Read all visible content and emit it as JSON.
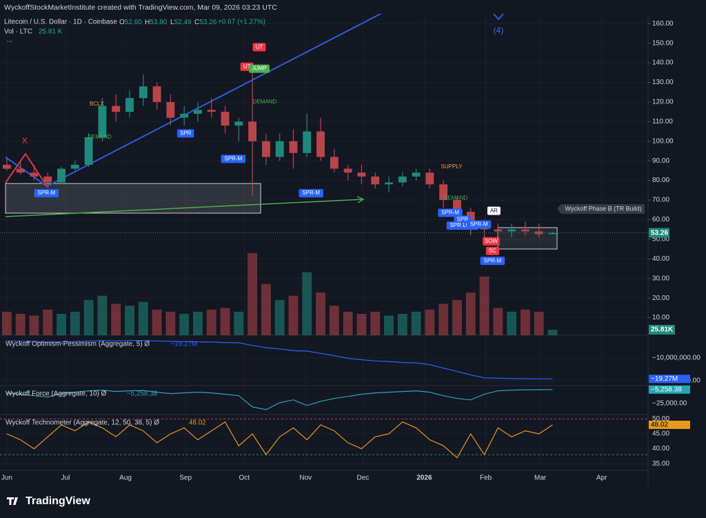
{
  "page": {
    "credit": "WyckoffStockMarketInstitute created with TradingView.com, Mar 09, 2026 03:23 UTC",
    "logo": "TradingView"
  },
  "legend": {
    "symbol": "Litecoin / U.S. Dollar · 1D · Coinbase",
    "o_label": "O",
    "o": "52.60",
    "h_label": "H",
    "h": "53.80",
    "l_label": "L",
    "l": "52.49",
    "c_label": "C",
    "c": "53.26",
    "change": "+0.67 (+1.27%)",
    "vol": "Vol · LTC",
    "vol_value": "25.81 K",
    "more": "..."
  },
  "chart_data": {
    "type": "candlestick",
    "up_color": "#1f8a7c",
    "down_color": "#b8454b",
    "xlim": [
      -0.5,
      47
    ],
    "xticks": [
      {
        "value": 0,
        "label": "Jun"
      },
      {
        "value": 4.3,
        "label": "Jul"
      },
      {
        "value": 8.7,
        "label": "Aug"
      },
      {
        "value": 13.1,
        "label": "Sep"
      },
      {
        "value": 17.4,
        "label": "Oct"
      },
      {
        "value": 21.9,
        "label": "Nov"
      },
      {
        "value": 26.1,
        "label": "Dec"
      },
      {
        "value": 30.6,
        "label": "2026"
      },
      {
        "value": 35.1,
        "label": "Feb"
      },
      {
        "value": 39.1,
        "label": "Mar"
      },
      {
        "value": 43.6,
        "label": "Apr"
      }
    ],
    "ylim": [
      0,
      165
    ],
    "yticks": [
      {
        "value": 160,
        "label": "160.00"
      },
      {
        "value": 150,
        "label": "150.00"
      },
      {
        "value": 140,
        "label": "140.00"
      },
      {
        "value": 130,
        "label": "130.00"
      },
      {
        "value": 120,
        "label": "120.00"
      },
      {
        "value": 110,
        "label": "110.00"
      },
      {
        "value": 100,
        "label": "100.00"
      },
      {
        "value": 90,
        "label": "90.00"
      },
      {
        "value": 80,
        "label": "80.00"
      },
      {
        "value": 70,
        "label": "70.00"
      },
      {
        "value": 60,
        "label": "60.00"
      },
      {
        "value": 50,
        "label": "50.00"
      },
      {
        "value": 40,
        "label": "40.00"
      },
      {
        "value": 30,
        "label": "30.00"
      },
      {
        "value": 20,
        "label": "20.00"
      },
      {
        "value": 10,
        "label": "10.00"
      }
    ],
    "open": [
      88,
      86,
      84,
      82,
      79,
      86,
      88,
      102,
      118,
      115,
      122,
      128,
      120,
      112,
      114,
      116,
      115,
      108,
      110,
      100,
      92,
      100,
      94,
      105,
      92,
      86,
      84,
      82,
      78,
      79,
      82,
      84,
      78,
      70,
      64,
      56,
      55,
      54,
      55,
      54,
      52.6
    ],
    "high": [
      92,
      90,
      88,
      84,
      87,
      90,
      104,
      122,
      124,
      126,
      134,
      130,
      124,
      118,
      120,
      122,
      118,
      112,
      136,
      104,
      104,
      106,
      114,
      112,
      96,
      88,
      88,
      84,
      82,
      84,
      86,
      86,
      80,
      72,
      66,
      60,
      58,
      58,
      59,
      58,
      53.8
    ],
    "low": [
      85,
      83,
      80,
      76,
      78,
      85,
      87,
      100,
      110,
      112,
      118,
      116,
      108,
      108,
      110,
      112,
      104,
      100,
      72,
      88,
      90,
      86,
      92,
      90,
      84,
      80,
      78,
      76,
      74,
      77,
      80,
      76,
      66,
      60,
      52,
      48,
      52,
      51,
      52,
      51,
      52.49
    ],
    "close": [
      86,
      84,
      82,
      79,
      86,
      88,
      102,
      118,
      115,
      122,
      128,
      120,
      112,
      114,
      116,
      115,
      108,
      110,
      100,
      92,
      100,
      94,
      105,
      92,
      86,
      84,
      82,
      78,
      79,
      82,
      84,
      78,
      70,
      64,
      56,
      55,
      54,
      55,
      54,
      52.6,
      53.26
    ],
    "last_price_label": "53.26",
    "volume": [
      110,
      100,
      92,
      120,
      100,
      110,
      165,
      185,
      147,
      138,
      156,
      120,
      110,
      100,
      110,
      120,
      128,
      110,
      385,
      240,
      165,
      185,
      295,
      200,
      138,
      110,
      100,
      110,
      92,
      100,
      110,
      120,
      147,
      165,
      200,
      275,
      128,
      110,
      120,
      110,
      25.81
    ],
    "vlim": [
      0,
      420
    ],
    "last_volume_label": "25.81K",
    "annotations": [
      {
        "text": "X",
        "x": 1.3,
        "y": 100,
        "style": "text",
        "color": "#f23645"
      },
      {
        "text": "UT",
        "x": 18.5,
        "y": 148,
        "style": "box",
        "color": "#f23645"
      },
      {
        "text": "UT",
        "x": 17.6,
        "y": 138,
        "style": "box",
        "color": "#f23645"
      },
      {
        "text": "JUMP",
        "x": 18.5,
        "y": 137,
        "style": "box",
        "color": "#4caf50"
      },
      {
        "text": "BCLX",
        "x": 6.6,
        "y": 119,
        "style": "text",
        "color": "#e8a33d"
      },
      {
        "text": "DEMAND",
        "x": 6.8,
        "y": 102,
        "style": "text",
        "color": "#4caf50"
      },
      {
        "text": "DEMAND",
        "x": 18.9,
        "y": 120,
        "style": "text",
        "color": "#4caf50"
      },
      {
        "text": "SPR",
        "x": 13.1,
        "y": 104,
        "style": "box",
        "color": "#2962ff"
      },
      {
        "text": "SPR-M",
        "x": 16.6,
        "y": 91,
        "style": "box",
        "color": "#2962ff"
      },
      {
        "text": "SPR-M",
        "x": 2.9,
        "y": 73.5,
        "style": "box",
        "color": "#2962ff"
      },
      {
        "text": "SPR-M",
        "x": 22.3,
        "y": 73.5,
        "style": "box",
        "color": "#2962ff"
      },
      {
        "text": "SUPPLY",
        "x": 32.6,
        "y": 87,
        "style": "text",
        "color": "#e8a33d"
      },
      {
        "text": "DEMAND",
        "x": 32.9,
        "y": 71,
        "style": "text",
        "color": "#4caf50"
      },
      {
        "text": "SPR-M",
        "x": 32.5,
        "y": 63.5,
        "style": "box",
        "color": "#2962ff"
      },
      {
        "text": "SPR",
        "x": 33.4,
        "y": 60,
        "style": "box",
        "color": "#2962ff"
      },
      {
        "text": "SPR LOW",
        "x": 33.4,
        "y": 57,
        "style": "box",
        "color": "#2962ff"
      },
      {
        "text": "SPR-M",
        "x": 34.6,
        "y": 57.5,
        "style": "box",
        "color": "#2962ff"
      },
      {
        "text": "AR",
        "x": 35.7,
        "y": 64.5,
        "style": "box",
        "color": "#ffffff"
      },
      {
        "text": "SOW",
        "x": 35.5,
        "y": 49,
        "style": "box",
        "color": "#f23645"
      },
      {
        "text": "SC",
        "x": 35.6,
        "y": 44,
        "style": "box",
        "color": "#f23645"
      },
      {
        "text": "SPR-M",
        "x": 35.6,
        "y": 39,
        "style": "box",
        "color": "#2962ff"
      }
    ],
    "wave_label": "(4)",
    "callout": "Wyckoff Phase B (TR Build)",
    "panes": [
      {
        "type": "line",
        "title": "Wyckoff Optimism-Pessimism (Aggregate, 5)  Ø",
        "value_label": "−19.27M",
        "color": "#2962ff",
        "ylim": [
          -21300000,
          -900000
        ],
        "yticks": [
          {
            "value": -10000000,
            "label": "−10,000,000.00"
          },
          {
            "value": -20000000,
            "label": "−20,000,000.00"
          }
        ],
        "values": [
          -2500000,
          -2600000,
          -2800000,
          -3000000,
          -2900000,
          -2800000,
          -2600000,
          -2400000,
          -2500000,
          -2400000,
          -2300000,
          -2500000,
          -2700000,
          -2800000,
          -2900000,
          -3000000,
          -3200000,
          -3300000,
          -4500000,
          -5500000,
          -6000000,
          -6800000,
          -7000000,
          -8000000,
          -9000000,
          -10200000,
          -10800000,
          -11300000,
          -11600000,
          -12000000,
          -12200000,
          -13000000,
          -14500000,
          -16000000,
          -17500000,
          -18800000,
          -19000000,
          -19100000,
          -19200000,
          -19250000,
          -19270000
        ],
        "last_label": "−19.27M"
      },
      {
        "type": "line",
        "title": "Wyckoff Force (Aggregate, 10)  Ø",
        "value_label": "−5,258.38",
        "color": "#26a6b5",
        "ylim": [
          -39000,
          -1500
        ],
        "yticks": [
          {
            "value": -25000,
            "label": "−25,000.00"
          }
        ],
        "values": [
          -10000,
          -12000,
          -14000,
          -16000,
          -11000,
          -9000,
          -7000,
          -6000,
          -8000,
          -7000,
          -6500,
          -9000,
          -11000,
          -10000,
          -9000,
          -10000,
          -12000,
          -14000,
          -30000,
          -34000,
          -24000,
          -20000,
          -28000,
          -22000,
          -18000,
          -15000,
          -12000,
          -10000,
          -9000,
          -8000,
          -7000,
          -9000,
          -14000,
          -18000,
          -20000,
          -12000,
          -7000,
          -6000,
          -5500,
          -5400,
          -5258.38
        ],
        "last_label": "−5,258.38"
      },
      {
        "type": "line",
        "title": "Wyckoff Technometer (Aggregate, 12, 50, 38, 5)  Ø",
        "value_label": "48.02",
        "color": "#e69a1e",
        "ylim": [
          33.2,
          51
        ],
        "yticks": [
          {
            "value": 50,
            "label": "50.00"
          },
          {
            "value": 45,
            "label": "45.00"
          },
          {
            "value": 40,
            "label": "40.00"
          },
          {
            "value": 35,
            "label": "35.00"
          }
        ],
        "levels": [
          {
            "value": 50,
            "color": "#b8454b"
          },
          {
            "value": 38,
            "color": "#1f8a7c"
          }
        ],
        "values": [
          45,
          43,
          40,
          44,
          48,
          46,
          49,
          47,
          44,
          48,
          46,
          42,
          45,
          47,
          43,
          46,
          49,
          41,
          45,
          38,
          44,
          47,
          43,
          48,
          46,
          42,
          40,
          44,
          45,
          49,
          47,
          43,
          41,
          37,
          45,
          38,
          47,
          44,
          46,
          45,
          48.02
        ],
        "last_label": "48.02"
      }
    ]
  }
}
